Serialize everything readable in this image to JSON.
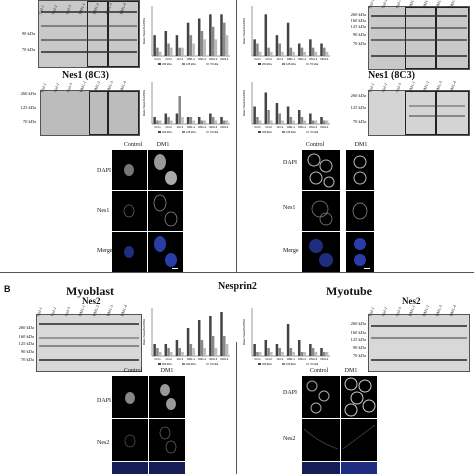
{
  "panel_b_label": "B",
  "panel_b_title": "Nesprin2",
  "sections": {
    "myoblast": "Myoblast",
    "myotube": "Myotube",
    "nes1_left": "Nes1 (8C3)",
    "nes1_right": "Nes1 (8C3)",
    "nes2_left": "Nes2",
    "nes2_right": "Nes2"
  },
  "kda_markers": {
    "blot_a": [
      "260 kDa",
      "160 kDa",
      "125 kDa",
      "90 kDa",
      "70 kDa"
    ],
    "blot_b": [
      "260 kDa",
      "125 kDa",
      "70 kDa"
    ],
    "blot_c": [
      "260 kDa",
      "160 kDa",
      "125 kDa",
      "90 kDa",
      "70 kDa"
    ],
    "blot_d": [
      "260 kDa",
      "125 kDa",
      "70 kDa"
    ],
    "blot_e": [
      "260 kDa",
      "160 kDa",
      "125 kDa",
      "90 kDa",
      "70 kDa"
    ],
    "blot_f": [
      "260 kDa",
      "160 kDa",
      "125 kDa",
      "90 kDa",
      "70 kDa"
    ]
  },
  "lane_labels": [
    "Ctrl-1",
    "Ctrl-2",
    "Ctrl-3",
    "DM1-1",
    "DM1-2",
    "DM1-3",
    "DM1-4"
  ],
  "microscopy": {
    "columns": [
      "Control",
      "DM1"
    ],
    "rows_top": [
      "DAPI",
      "Nes1",
      "Merge"
    ],
    "rows_bottom": [
      "DAPI",
      "Nes2"
    ]
  },
  "chart_data": [
    {
      "type": "bar",
      "ylabel": "Ratio Nes1/GAPDH",
      "categories": [
        "Ctrl-1",
        "Ctrl-2",
        "Ctrl-3",
        "DM1-1",
        "DM1-2",
        "DM1-3",
        "DM1-4"
      ],
      "series": [
        {
          "name": "260 kDa",
          "values": [
            0.5,
            0.6,
            0.5,
            0.8,
            0.9,
            1.0,
            1.0
          ]
        },
        {
          "name": "125 kDa",
          "values": [
            0.2,
            0.3,
            0.2,
            0.5,
            0.6,
            0.7,
            0.8
          ]
        },
        {
          "name": "70 kDa",
          "values": [
            0.1,
            0.2,
            0.2,
            0.3,
            0.4,
            0.4,
            0.5
          ]
        }
      ],
      "ylim": [
        0,
        1.2
      ]
    },
    {
      "type": "bar",
      "ylabel": "Ratio Nes1/GAPDH",
      "categories": [
        "Ctrl-1",
        "Ctrl-2",
        "Ctrl-3",
        "DM1-1",
        "DM1-2",
        "DM1-3",
        "DM1-4"
      ],
      "series": [
        {
          "name": "260 kDa",
          "values": [
            0.4,
            1.0,
            0.5,
            0.8,
            0.3,
            0.4,
            0.3
          ]
        },
        {
          "name": "125 kDa",
          "values": [
            0.3,
            0.2,
            0.3,
            0.2,
            0.2,
            0.2,
            0.2
          ]
        },
        {
          "name": "70 kDa",
          "values": [
            0.1,
            0.1,
            0.1,
            0.1,
            0.1,
            0.1,
            0.1
          ]
        }
      ],
      "ylim": [
        0,
        1.2
      ]
    },
    {
      "type": "bar",
      "ylabel": "Ratio Nes1/GAPDH",
      "categories": [
        "Ctrl-1",
        "Ctrl-2",
        "Ctrl-3",
        "DM1-1",
        "DM1-2",
        "DM1-3",
        "DM1-4"
      ],
      "series": [
        {
          "name": "260 kDa",
          "values": [
            0.2,
            0.3,
            0.3,
            0.2,
            0.2,
            0.3,
            0.2
          ]
        },
        {
          "name": "125 kDa",
          "values": [
            0.1,
            0.2,
            0.8,
            0.2,
            0.1,
            0.2,
            0.1
          ]
        },
        {
          "name": "70 kDa",
          "values": [
            0.1,
            0.1,
            0.2,
            0.1,
            0.1,
            0.1,
            0.1
          ]
        }
      ],
      "ylim": [
        0,
        1.2
      ]
    },
    {
      "type": "bar",
      "ylabel": "Ratio Nes1/GAPDH",
      "categories": [
        "Ctrl-1",
        "Ctrl-2",
        "Ctrl-3",
        "DM1-1",
        "DM1-2",
        "DM1-3",
        "DM1-4"
      ],
      "series": [
        {
          "name": "260 kDa",
          "values": [
            0.5,
            0.9,
            0.6,
            0.5,
            0.4,
            0.3,
            0.2
          ]
        },
        {
          "name": "125 kDa",
          "values": [
            0.2,
            0.4,
            0.3,
            0.2,
            0.2,
            0.1,
            0.1
          ]
        },
        {
          "name": "70 kDa",
          "values": [
            0.1,
            0.1,
            0.1,
            0.1,
            0.1,
            0.1,
            0.1
          ]
        }
      ],
      "ylim": [
        0,
        1.2
      ]
    },
    {
      "type": "bar",
      "ylabel": "Ratio Nes2/GAPDH",
      "categories": [
        "Ctrl-1",
        "Ctrl-2",
        "Ctrl-3",
        "DM1-1",
        "DM1-2",
        "DM1-3",
        "DM1-4"
      ],
      "series": [
        {
          "name": "800 kDa",
          "values": [
            0.3,
            0.3,
            0.4,
            0.7,
            0.9,
            1.0,
            1.1
          ]
        },
        {
          "name": "260 kDa",
          "values": [
            0.2,
            0.2,
            0.2,
            0.3,
            0.4,
            0.5,
            0.5
          ]
        },
        {
          "name": "70 kDa",
          "values": [
            0.1,
            0.1,
            0.1,
            0.2,
            0.2,
            0.2,
            0.3
          ]
        }
      ],
      "ylim": [
        0,
        1.2
      ]
    },
    {
      "type": "bar",
      "ylabel": "Ratio Nes2/GAPDH",
      "categories": [
        "Ctrl-1",
        "Ctrl-2",
        "Ctrl-3",
        "DM1-1",
        "DM1-2",
        "DM1-3",
        "DM1-4"
      ],
      "series": [
        {
          "name": "260 kDa",
          "values": [
            0.3,
            0.4,
            0.3,
            0.8,
            0.4,
            0.3,
            0.2
          ]
        },
        {
          "name": "160 kDa",
          "values": [
            0.1,
            0.2,
            0.2,
            0.2,
            0.1,
            0.2,
            0.1
          ]
        },
        {
          "name": "70 kDa",
          "values": [
            0.1,
            0.1,
            0.1,
            0.1,
            0.1,
            0.1,
            0.1
          ]
        }
      ],
      "ylim": [
        0,
        1.2
      ]
    }
  ],
  "colors": {
    "series": [
      "#444444",
      "#888888",
      "#bbbbbb"
    ],
    "blot_bg": "#c9c9c9",
    "dapi": "#9a9a9a",
    "merge": "#2a3ca8"
  }
}
